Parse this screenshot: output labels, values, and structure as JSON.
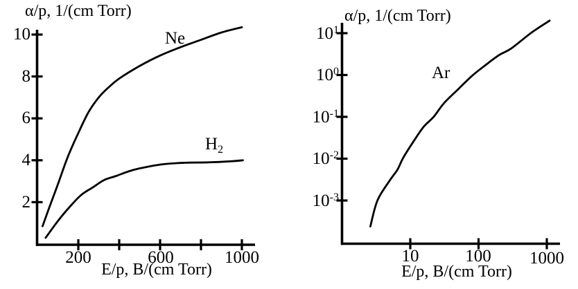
{
  "figure": {
    "description": "Two line plots of ionization coefficient versus reduced electric field",
    "colors": {
      "ink": "#000000",
      "background": "#ffffff"
    }
  },
  "chart_data": [
    {
      "id": "left-linear-plot",
      "type": "line",
      "x_scale": "linear",
      "y_scale": "linear",
      "xlabel": "E/p, B/(cm Torr)",
      "ylabel": "α/p, 1/(cm Torr)",
      "xlim": [
        0,
        1065
      ],
      "ylim": [
        0,
        10.4
      ],
      "grid": false,
      "legend_position": "inline-curve-labels",
      "x_ticks": [
        {
          "value": 200,
          "label": "200"
        },
        {
          "value": 400,
          "label": ""
        },
        {
          "value": 600,
          "label": "600"
        },
        {
          "value": 800,
          "label": ""
        },
        {
          "value": 1000,
          "label": "1000"
        }
      ],
      "y_ticks": [
        {
          "value": 2,
          "label": "2"
        },
        {
          "value": 4,
          "label": "4"
        },
        {
          "value": 6,
          "label": "6"
        },
        {
          "value": 8,
          "label": "8"
        },
        {
          "value": 10,
          "label": "10"
        }
      ],
      "series": [
        {
          "name": "Ne",
          "label": "Ne",
          "label_sub": "",
          "x": [
            25,
            60,
            100,
            150,
            200,
            250,
            300,
            350,
            400,
            500,
            600,
            700,
            800,
            900,
            1000
          ],
          "y": [
            0.85,
            1.8,
            2.85,
            4.2,
            5.3,
            6.3,
            7.0,
            7.5,
            7.9,
            8.5,
            9.0,
            9.4,
            9.75,
            10.1,
            10.35
          ]
        },
        {
          "name": "H2",
          "label": "H",
          "label_sub": "2",
          "x": [
            40,
            100,
            160,
            215,
            270,
            325,
            385,
            440,
            495,
            605,
            720,
            835,
            945,
            1005
          ],
          "y": [
            0.3,
            1.1,
            1.8,
            2.35,
            2.7,
            3.05,
            3.25,
            3.45,
            3.6,
            3.8,
            3.88,
            3.9,
            3.95,
            4.0
          ]
        }
      ]
    },
    {
      "id": "right-log-plot",
      "type": "line",
      "x_scale": "log",
      "y_scale": "log",
      "xlabel": "E/p, B/(cm Torr)",
      "ylabel": "α/p, 1/(cm Torr)",
      "xlim": [
        1,
        1560
      ],
      "ylim": [
        0.0001,
        20
      ],
      "grid": false,
      "legend_position": "inline-curve-labels",
      "x_ticks": [
        {
          "value": 10,
          "label": "10"
        },
        {
          "value": 100,
          "label": "100"
        },
        {
          "value": 1000,
          "label": "1000"
        }
      ],
      "y_ticks": [
        {
          "value": 10,
          "base": "10",
          "exp": "1"
        },
        {
          "value": 1,
          "base": "10",
          "exp": "0"
        },
        {
          "value": 0.1,
          "base": "10",
          "exp": "-1"
        },
        {
          "value": 0.01,
          "base": "10",
          "exp": "-2"
        },
        {
          "value": 0.001,
          "base": "10",
          "exp": "-3"
        }
      ],
      "series": [
        {
          "name": "Ar",
          "label": "Ar",
          "label_sub": "",
          "x": [
            2.6,
            3.3,
            5,
            6.5,
            8,
            12,
            16,
            22,
            31,
            49,
            80,
            125,
            200,
            300,
            600,
            1100
          ],
          "y": [
            0.00024,
            0.001,
            0.003,
            0.0055,
            0.011,
            0.031,
            0.06,
            0.1,
            0.21,
            0.44,
            0.95,
            1.7,
            3.0,
            4.3,
            10.4,
            20
          ]
        }
      ]
    }
  ]
}
